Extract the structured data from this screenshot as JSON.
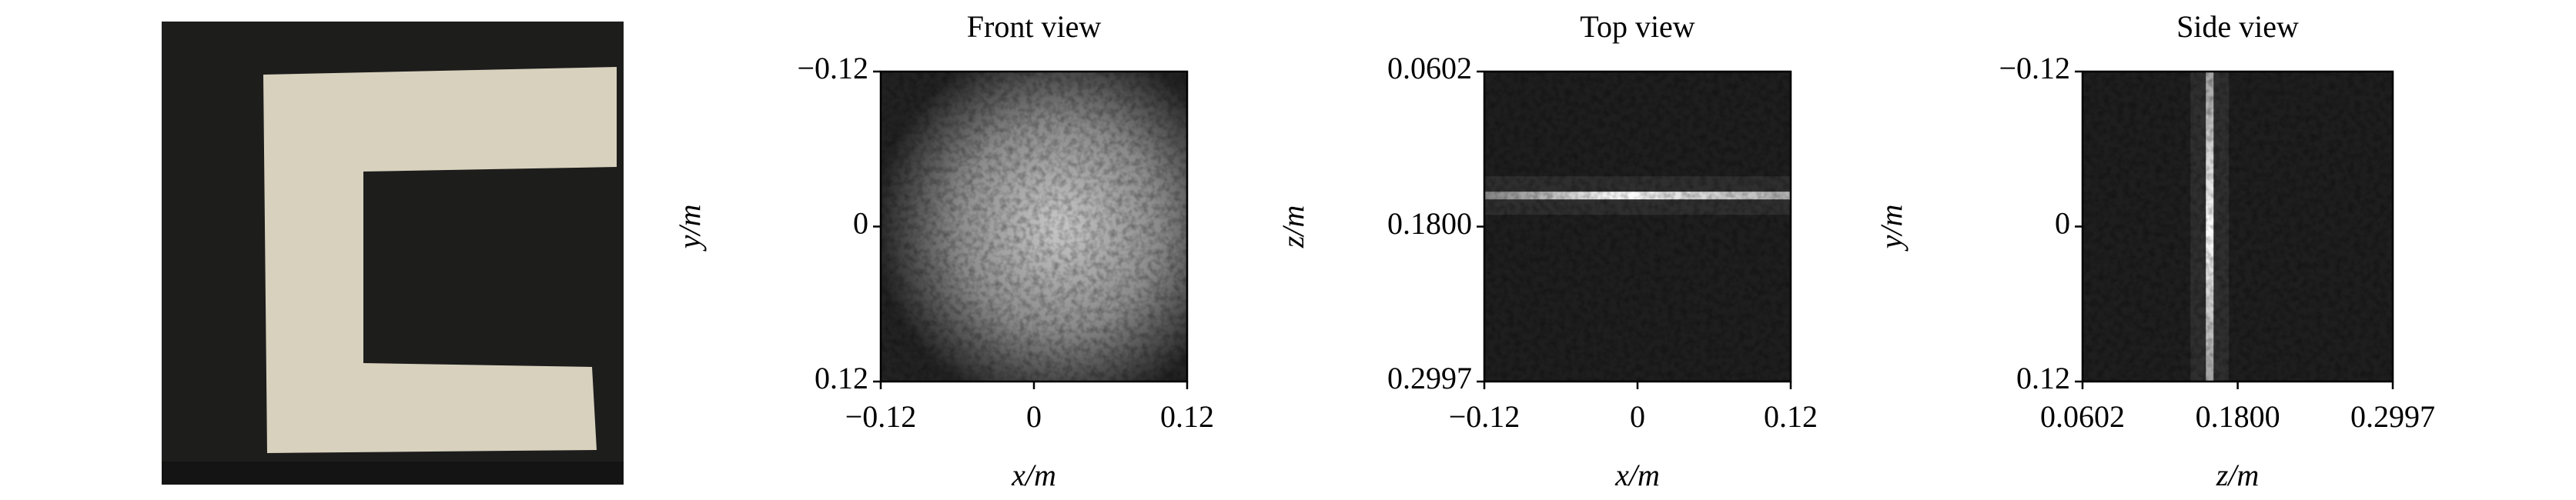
{
  "chart_data": [
    {
      "type": "image",
      "title": "Front view",
      "xlabel": "x/m",
      "ylabel": "y/m",
      "xlim": [
        -0.12,
        0.12
      ],
      "xticks": [
        {
          "value": -0.12,
          "label": "−0.12"
        },
        0,
        0.12
      ],
      "ylim": [
        0.12,
        -0.12
      ],
      "yticks": [
        {
          "value": -0.12,
          "label": "−0.12"
        },
        0,
        0.12
      ]
    },
    {
      "type": "image",
      "title": "Top view",
      "xlabel": "x/m",
      "ylabel": "z/m",
      "xlim": [
        -0.12,
        0.12
      ],
      "xticks": [
        {
          "value": -0.12,
          "label": "−0.12"
        },
        0,
        0.12
      ],
      "ylim": [
        0.2997,
        0.0602
      ],
      "yticks": [
        0.0602,
        {
          "value": 0.18,
          "label": "0.1800"
        },
        0.2997
      ]
    },
    {
      "type": "image",
      "title": "Side view",
      "xlabel": "z/m",
      "ylabel": "y/m",
      "xlim": [
        0.0602,
        0.2997
      ],
      "xticks": [
        0.0602,
        {
          "value": 0.18,
          "label": "0.1800"
        },
        0.2997
      ],
      "ylim": [
        0.12,
        -0.12
      ],
      "yticks": [
        {
          "value": -0.12,
          "label": "−0.12"
        },
        0,
        0.12
      ]
    }
  ]
}
